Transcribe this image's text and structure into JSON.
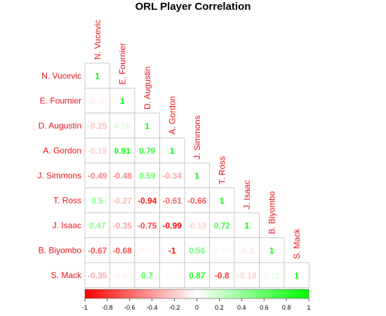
{
  "chart_data": {
    "type": "heatmap",
    "title": "ORL Player Correlation",
    "players": [
      "N. Vucevic",
      "E. Fournier",
      "D. Augustin",
      "A. Gordon",
      "J. Simmons",
      "T. Ross",
      "J. Isaac",
      "B. Biyombo",
      "S. Mack"
    ],
    "matrix": [
      [
        "1"
      ],
      [
        "-0.06",
        "1"
      ],
      [
        "-0.25",
        "0.16",
        "1"
      ],
      [
        "-0.19",
        "0.91",
        "0.79",
        "1"
      ],
      [
        "-0.49",
        "-0.48",
        "0.59",
        "-0.34",
        "1"
      ],
      [
        "0.5",
        "-0.27",
        "-0.94",
        "-0.61",
        "-0.66",
        "1"
      ],
      [
        "0.47",
        "-0.35",
        "-0.75",
        "-0.99",
        "-0.19",
        "0.72",
        "1"
      ],
      [
        "-0.67",
        "-0.68",
        "-0.05",
        "-1",
        "0.56",
        "-0.04",
        "-0.1",
        "1"
      ],
      [
        "-0.35",
        "-0.06",
        "0.7",
        "-0.03",
        "0.87",
        "-0.8",
        "-0.18",
        "0.11",
        "1"
      ]
    ],
    "lower_triangle": true,
    "color_scale": {
      "low": "#ff0000",
      "mid": "#ffffff",
      "high": "#00ff00",
      "range": [
        -1,
        1
      ]
    },
    "colorbar_ticks": [
      "-1",
      "-0.8",
      "-0.6",
      "-0.4",
      "-0.2",
      "0",
      "0.2",
      "0.4",
      "0.6",
      "0.8",
      "1"
    ],
    "label_color": "#e8141c",
    "grid_color": "#bfbfbf"
  }
}
